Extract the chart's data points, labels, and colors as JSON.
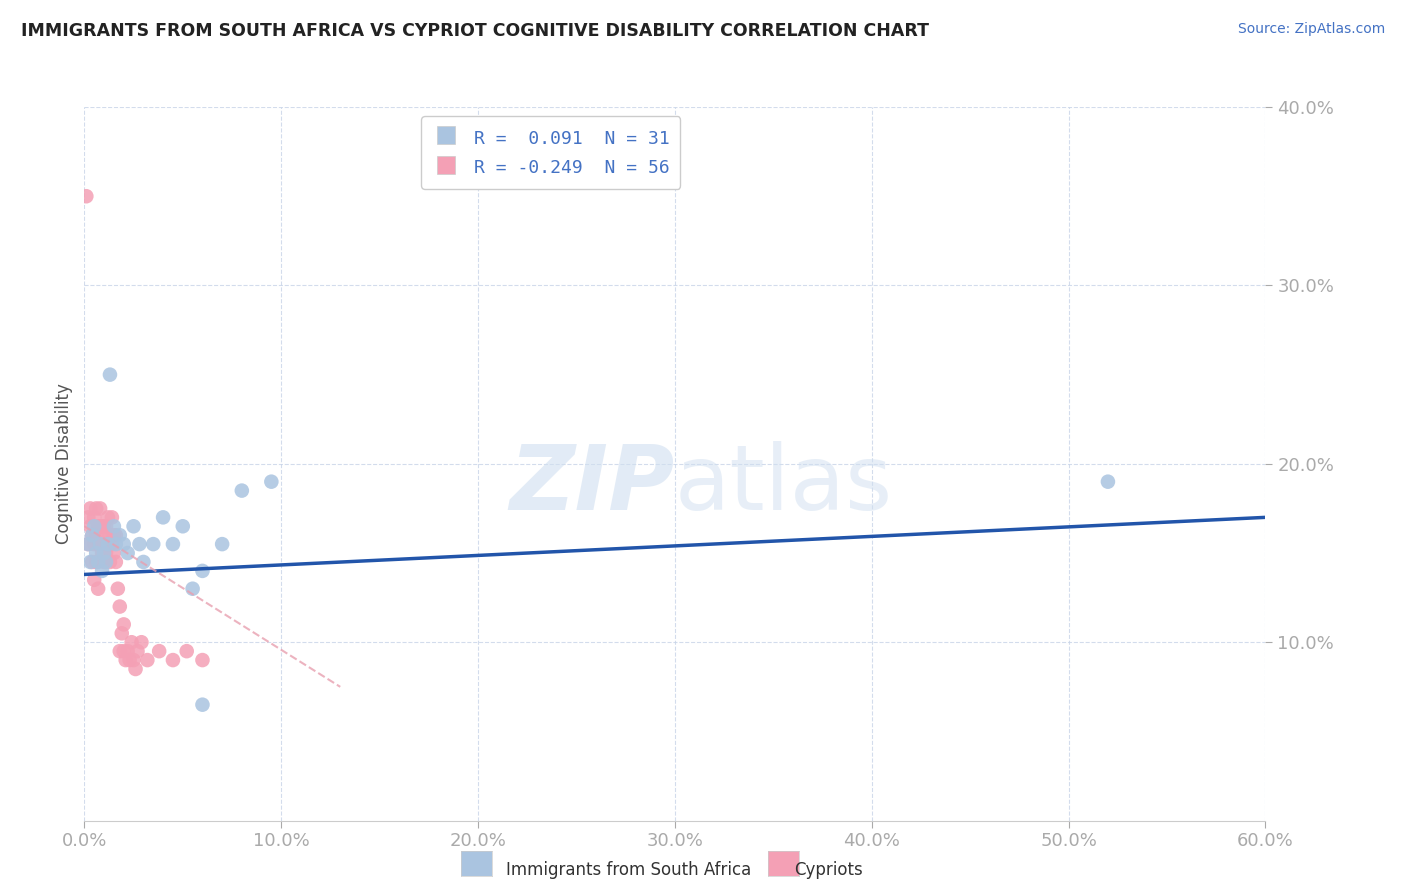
{
  "title": "IMMIGRANTS FROM SOUTH AFRICA VS CYPRIOT COGNITIVE DISABILITY CORRELATION CHART",
  "source": "Source: ZipAtlas.com",
  "ylabel": "Cognitive Disability",
  "xlim": [
    0.0,
    0.6
  ],
  "ylim": [
    0.0,
    0.4
  ],
  "yticks": [
    0.1,
    0.2,
    0.3,
    0.4
  ],
  "xticks": [
    0.0,
    0.1,
    0.2,
    0.3,
    0.4,
    0.5,
    0.6
  ],
  "blue_R": "0.091",
  "blue_N": "31",
  "pink_R": "-0.249",
  "pink_N": "56",
  "blue_color": "#aac4e0",
  "pink_color": "#f4a0b5",
  "trend_blue_color": "#2255aa",
  "trend_pink_color": "#e8a0b0",
  "watermark_color": "#d0dff0",
  "blue_scatter_x": [
    0.002,
    0.003,
    0.004,
    0.005,
    0.006,
    0.007,
    0.008,
    0.009,
    0.01,
    0.011,
    0.012,
    0.013,
    0.015,
    0.016,
    0.018,
    0.02,
    0.022,
    0.025,
    0.028,
    0.03,
    0.035,
    0.04,
    0.045,
    0.05,
    0.055,
    0.06,
    0.07,
    0.08,
    0.095,
    0.52,
    0.06
  ],
  "blue_scatter_y": [
    0.155,
    0.145,
    0.16,
    0.165,
    0.15,
    0.145,
    0.155,
    0.14,
    0.15,
    0.145,
    0.155,
    0.25,
    0.165,
    0.155,
    0.16,
    0.155,
    0.15,
    0.165,
    0.155,
    0.145,
    0.155,
    0.17,
    0.155,
    0.165,
    0.13,
    0.14,
    0.155,
    0.185,
    0.19,
    0.19,
    0.065
  ],
  "pink_scatter_x": [
    0.001,
    0.002,
    0.002,
    0.003,
    0.003,
    0.004,
    0.004,
    0.005,
    0.005,
    0.005,
    0.006,
    0.006,
    0.006,
    0.007,
    0.007,
    0.007,
    0.008,
    0.008,
    0.008,
    0.009,
    0.009,
    0.009,
    0.01,
    0.01,
    0.01,
    0.011,
    0.011,
    0.012,
    0.012,
    0.013,
    0.013,
    0.014,
    0.014,
    0.015,
    0.015,
    0.016,
    0.016,
    0.017,
    0.018,
    0.018,
    0.019,
    0.02,
    0.02,
    0.021,
    0.022,
    0.023,
    0.024,
    0.025,
    0.026,
    0.027,
    0.029,
    0.032,
    0.038,
    0.045,
    0.052,
    0.06
  ],
  "pink_scatter_y": [
    0.35,
    0.17,
    0.155,
    0.165,
    0.175,
    0.16,
    0.145,
    0.17,
    0.155,
    0.135,
    0.175,
    0.16,
    0.145,
    0.165,
    0.155,
    0.13,
    0.165,
    0.155,
    0.175,
    0.165,
    0.15,
    0.16,
    0.165,
    0.155,
    0.145,
    0.165,
    0.15,
    0.17,
    0.155,
    0.16,
    0.145,
    0.155,
    0.17,
    0.16,
    0.15,
    0.145,
    0.16,
    0.13,
    0.12,
    0.095,
    0.105,
    0.095,
    0.11,
    0.09,
    0.095,
    0.09,
    0.1,
    0.09,
    0.085,
    0.095,
    0.1,
    0.09,
    0.095,
    0.09,
    0.095,
    0.09
  ],
  "blue_trend_x0": 0.0,
  "blue_trend_y0": 0.138,
  "blue_trend_x1": 0.6,
  "blue_trend_y1": 0.17,
  "pink_trend_x0": 0.0,
  "pink_trend_y0": 0.165,
  "pink_trend_x1": 0.13,
  "pink_trend_y1": 0.075
}
